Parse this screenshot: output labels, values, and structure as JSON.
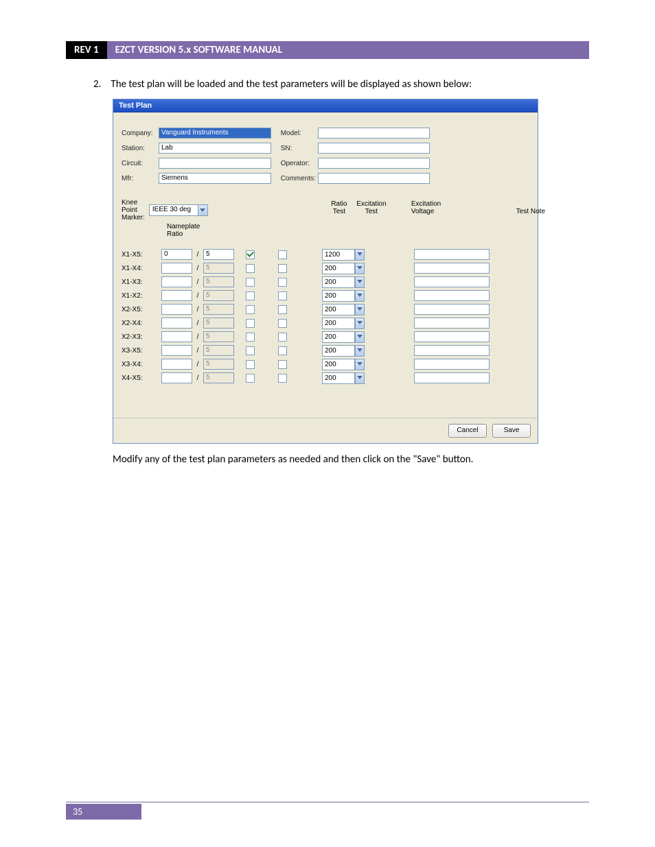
{
  "header": {
    "rev": "REV 1",
    "title": "EZCT VERSION 5.x SOFTWARE MANUAL"
  },
  "step": {
    "num": "2.",
    "text": "The test plan will be loaded and the test parameters will be displayed as shown below:"
  },
  "window": {
    "title": "Test Plan",
    "left_fields": [
      {
        "label": "Company:",
        "value": "Vanguard Instruments",
        "selected": true
      },
      {
        "label": "Station:",
        "value": "Lab",
        "selected": false
      },
      {
        "label": "Circuit:",
        "value": "",
        "selected": false
      },
      {
        "label": "Mfr:",
        "value": "Siemens",
        "selected": false
      }
    ],
    "right_fields": [
      {
        "label": "Model:",
        "value": ""
      },
      {
        "label": "SN:",
        "value": ""
      },
      {
        "label": "Operator:",
        "value": ""
      },
      {
        "label": "Comments:",
        "value": ""
      }
    ],
    "knee_label": "Knee Point Marker:",
    "knee_value": "IEEE 30 deg",
    "nameplate_label": "Nameplate Ratio",
    "cols": {
      "ratio": "Ratio\nTest",
      "exc": "Excitation\nTest",
      "voltage": "Excitation\nVoltage",
      "note": "Test Note"
    },
    "rows": [
      {
        "label": "X1-X5:",
        "n": "0",
        "d": "5",
        "disabled": false,
        "ratio": true,
        "exc": false,
        "volt": "1200"
      },
      {
        "label": "X1-X4:",
        "n": "",
        "d": "5",
        "disabled": true,
        "ratio": false,
        "exc": false,
        "volt": "200"
      },
      {
        "label": "X1-X3:",
        "n": "",
        "d": "5",
        "disabled": true,
        "ratio": false,
        "exc": false,
        "volt": "200"
      },
      {
        "label": "X1-X2:",
        "n": "",
        "d": "5",
        "disabled": true,
        "ratio": false,
        "exc": false,
        "volt": "200"
      },
      {
        "label": "X2-X5:",
        "n": "",
        "d": "5",
        "disabled": true,
        "ratio": false,
        "exc": false,
        "volt": "200"
      },
      {
        "label": "X2-X4:",
        "n": "",
        "d": "5",
        "disabled": true,
        "ratio": false,
        "exc": false,
        "volt": "200"
      },
      {
        "label": "X2-X3:",
        "n": "",
        "d": "5",
        "disabled": true,
        "ratio": false,
        "exc": false,
        "volt": "200"
      },
      {
        "label": "X3-X5:",
        "n": "",
        "d": "5",
        "disabled": true,
        "ratio": false,
        "exc": false,
        "volt": "200"
      },
      {
        "label": "X3-X4:",
        "n": "",
        "d": "5",
        "disabled": true,
        "ratio": false,
        "exc": false,
        "volt": "200"
      },
      {
        "label": "X4-X5:",
        "n": "",
        "d": "5",
        "disabled": true,
        "ratio": false,
        "exc": false,
        "volt": "200"
      }
    ],
    "buttons": {
      "cancel": "Cancel",
      "save": "Save"
    }
  },
  "after_text": "Modify any of the test plan parameters as needed and then click on the \"Save\" button.",
  "page_number": "35",
  "colors": {
    "header_bg": "#7d6aa9",
    "rev_bg": "#000000",
    "win_title_start": "#3b6ed5",
    "win_title_end": "#1d4fc2",
    "win_bg": "#ece9d8",
    "input_border": "#7f9db9",
    "selection_bg": "#316ac5"
  }
}
